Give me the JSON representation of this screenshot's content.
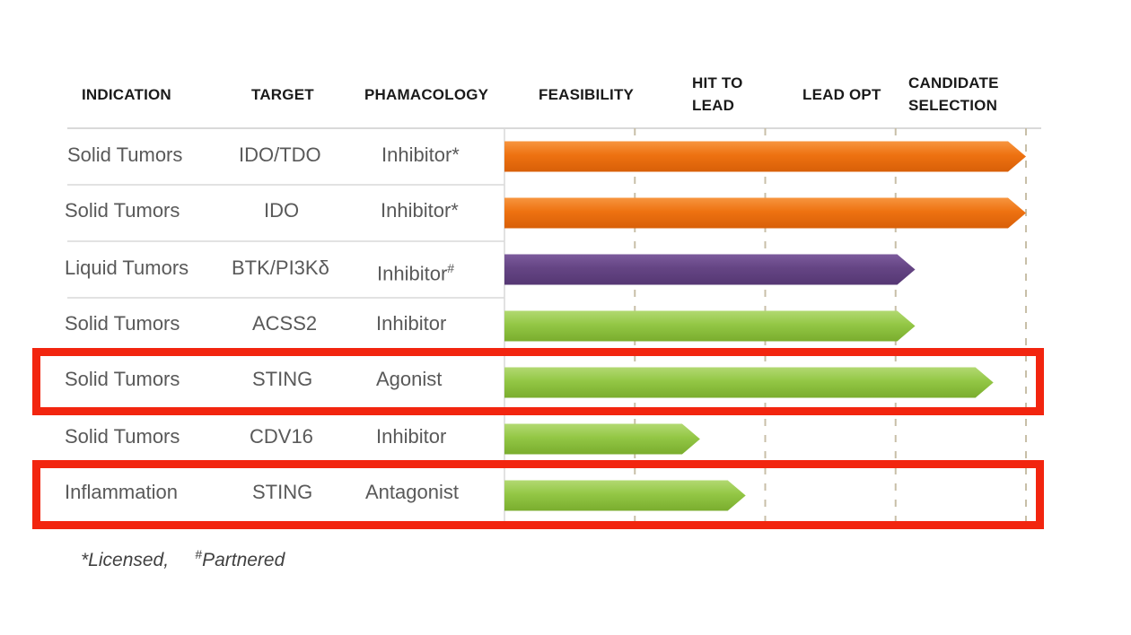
{
  "headers": {
    "indication": "INDICATION",
    "target": "TARGET",
    "pharmacology": "PHAMACOLOGY",
    "feasibility": "FEASIBILITY",
    "hit_to_lead": "HIT TO\nLEAD",
    "lead_opt": "LEAD OPT",
    "candidate_selection": "CANDIDATE\nSELECTION"
  },
  "rows": [
    {
      "indication": "Solid Tumors",
      "target": "IDO/TDO",
      "pharmacology": "Inhibitor*",
      "sup": ""
    },
    {
      "indication": "Solid Tumors",
      "target": "IDO",
      "pharmacology": "Inhibitor*",
      "sup": ""
    },
    {
      "indication": "Liquid Tumors",
      "target": "BTK/PI3Kδ",
      "pharmacology": "Inhibitor",
      "sup": "#"
    },
    {
      "indication": "Solid Tumors",
      "target": "ACSS2",
      "pharmacology": "Inhibitor",
      "sup": ""
    },
    {
      "indication": "Solid Tumors",
      "target": "STING",
      "pharmacology": "Agonist",
      "sup": ""
    },
    {
      "indication": "Solid Tumors",
      "target": "CDV16",
      "pharmacology": "Inhibitor",
      "sup": ""
    },
    {
      "indication": "Inflammation",
      "target": "STING",
      "pharmacology": "Antagonist",
      "sup": ""
    }
  ],
  "footnote": {
    "licensed": "*Licensed,",
    "partnered_mark": "#",
    "partnered": "Partnered"
  },
  "colors": {
    "orange": "#f07818",
    "purple": "#6b4a8a",
    "green": "#8dc040",
    "highlight": "#f2250f",
    "gridline": "#c8bfa8"
  },
  "highlighted_rows": [
    4,
    6
  ],
  "chart_data": {
    "type": "bar",
    "orientation": "horizontal",
    "stages": [
      "FEASIBILITY",
      "HIT TO LEAD",
      "LEAD OPT",
      "CANDIDATE SELECTION"
    ],
    "xlim": [
      0,
      4
    ],
    "categories": [
      "Solid Tumors / IDO/TDO",
      "Solid Tumors / IDO",
      "Liquid Tumors / BTK/PI3Kδ",
      "Solid Tumors / ACSS2",
      "Solid Tumors / STING",
      "Solid Tumors / CDV16",
      "Inflammation / STING"
    ],
    "values": [
      4.0,
      4.0,
      3.15,
      3.15,
      3.75,
      1.5,
      1.85
    ],
    "bar_colors": [
      "orange",
      "orange",
      "purple",
      "green",
      "green",
      "green",
      "green"
    ],
    "grid": true
  }
}
